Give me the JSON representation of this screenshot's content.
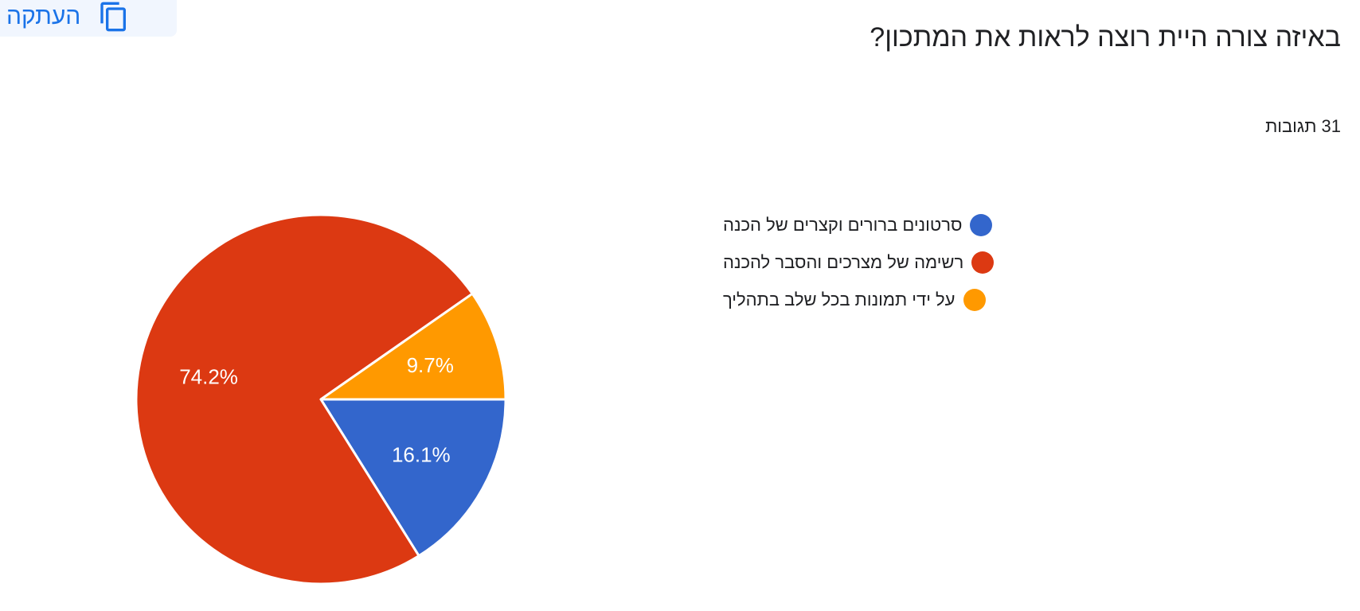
{
  "header": {
    "copy_label": "העתקה",
    "copy_icon": "copy-icon"
  },
  "question": {
    "title": "באיזה צורה היית רוצה לראות את המתכון?",
    "responses": "31 תגובות"
  },
  "colors": {
    "accent": "#1a73e8",
    "copy_bg": "#f1f6fe"
  },
  "chart_data": {
    "type": "pie",
    "title": "",
    "series": [
      {
        "name": "סרטונים ברורים וקצרים של הכנה",
        "value": 16.1,
        "label": "16.1%",
        "color": "#3366cc"
      },
      {
        "name": "רשימה של מצרכים והסבר להכנה",
        "value": 74.2,
        "label": "74.2%",
        "color": "#dc3912"
      },
      {
        "name": "על ידי תמונות בכל שלב בתהליך",
        "value": 9.7,
        "label": "9.7%",
        "color": "#ff9900"
      }
    ],
    "legend_placement": "right"
  }
}
